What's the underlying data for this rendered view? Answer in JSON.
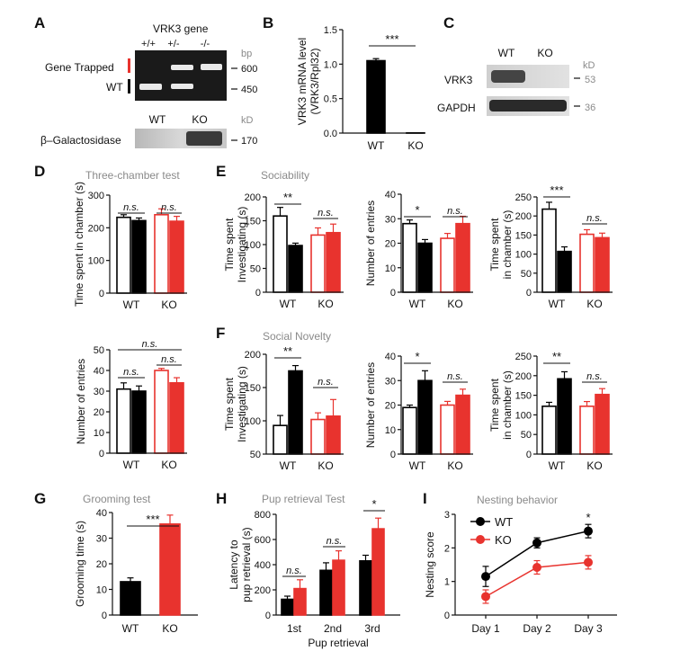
{
  "figure": {
    "panels": [
      {
        "letter": "A",
        "title": "VRK3 gene"
      },
      {
        "letter": "B"
      },
      {
        "letter": "C"
      },
      {
        "letter": "D",
        "title": "Three-chamber test"
      },
      {
        "letter": "E",
        "title": "Sociability"
      },
      {
        "letter": "F",
        "title": "Social Novelty"
      },
      {
        "letter": "G",
        "title": "Grooming test"
      },
      {
        "letter": "H",
        "title": "Pup retrieval Test"
      },
      {
        "letter": "I",
        "title": "Nesting behavior"
      }
    ],
    "gelA": {
      "lanes": [
        "+/+",
        "+/-",
        "-/-"
      ],
      "unit": "bp",
      "markers": [
        "600",
        "450"
      ],
      "labels": [
        "Gene Trapped",
        "WT"
      ]
    },
    "gelA2": {
      "lanes": [
        "WT",
        "KO"
      ],
      "unit": "kD",
      "marker": "170",
      "protein": "β–Galactosidase"
    },
    "blotC": {
      "lanes": [
        "WT",
        "KO"
      ],
      "unit": "kD",
      "rows": [
        {
          "name": "VRK3",
          "marker": "53"
        },
        {
          "name": "GAPDH",
          "marker": "36"
        }
      ]
    },
    "colors": {
      "wt": "#000000",
      "ko": "#e8332e",
      "title_gray": "#8a8a8a",
      "gel_bg": "#1a1a1a"
    }
  },
  "chart_data": [
    {
      "id": "B",
      "type": "bar",
      "categories": [
        "WT",
        "KO"
      ],
      "values": [
        1.05,
        0
      ],
      "errors": [
        0.03,
        0
      ],
      "ylabel": "VRK3 mRNA level\n(VRK3/Rpl32)",
      "ylim": [
        0,
        1.5
      ],
      "yticks": [
        "0.0",
        "0.5",
        "1.0",
        "1.5"
      ],
      "sig": [
        {
          "label": "***"
        }
      ]
    },
    {
      "id": "D1",
      "type": "bar",
      "groups": [
        "WT",
        "KO"
      ],
      "series": [
        {
          "values": [
            232,
            222
          ],
          "errors": [
            8,
            8
          ]
        },
        {
          "values": [
            240,
            220
          ],
          "errors": [
            18,
            15
          ]
        }
      ],
      "ylabel": "Time spent in chamber (s)",
      "ylim": [
        0,
        300
      ],
      "yticks": [
        "0",
        "100",
        "200",
        "300"
      ],
      "sig": [
        {
          "label": "n.s."
        },
        {
          "label": "n.s."
        }
      ]
    },
    {
      "id": "D2",
      "type": "bar",
      "groups": [
        "WT",
        "KO"
      ],
      "series": [
        {
          "values": [
            31,
            30
          ],
          "errors": [
            3,
            2.5
          ]
        },
        {
          "values": [
            40,
            34
          ],
          "errors": [
            1,
            2.5
          ]
        }
      ],
      "ylabel": "Number of entries",
      "ylim": [
        0,
        50
      ],
      "yticks": [
        "0",
        "10",
        "20",
        "30",
        "40",
        "50"
      ],
      "sig": [
        {
          "label": "n.s."
        },
        {
          "label": "n.s."
        },
        {
          "label": "n.s."
        }
      ]
    },
    {
      "id": "E1",
      "type": "bar",
      "groups": [
        "WT",
        "KO"
      ],
      "series": [
        {
          "values": [
            160,
            98
          ],
          "errors": [
            18,
            5
          ]
        },
        {
          "values": [
            120,
            125
          ],
          "errors": [
            15,
            18
          ]
        }
      ],
      "ylabel": "Time spent\nInvestigating (s)",
      "ylim": [
        0,
        200
      ],
      "yticks": [
        "0",
        "50",
        "100",
        "150",
        "200"
      ],
      "sig": [
        {
          "label": "**"
        },
        {
          "label": "n.s."
        }
      ]
    },
    {
      "id": "E2",
      "type": "bar",
      "groups": [
        "WT",
        "KO"
      ],
      "series": [
        {
          "values": [
            28,
            20
          ],
          "errors": [
            1.5,
            1.5
          ]
        },
        {
          "values": [
            22,
            28
          ],
          "errors": [
            2,
            3
          ]
        }
      ],
      "ylabel": "Number of entries",
      "ylim": [
        0,
        40
      ],
      "yticks": [
        "0",
        "10",
        "20",
        "30",
        "40"
      ],
      "sig": [
        {
          "label": "*"
        },
        {
          "label": "n.s."
        }
      ]
    },
    {
      "id": "E3",
      "type": "bar",
      "groups": [
        "WT",
        "KO"
      ],
      "series": [
        {
          "values": [
            218,
            107
          ],
          "errors": [
            18,
            12
          ]
        },
        {
          "values": [
            152,
            143
          ],
          "errors": [
            12,
            12
          ]
        }
      ],
      "ylabel": "Time spent\nin chamber (s)",
      "ylim": [
        0,
        250
      ],
      "yticks": [
        "0",
        "50",
        "100",
        "150",
        "200",
        "250"
      ],
      "sig": [
        {
          "label": "***"
        },
        {
          "label": "n.s."
        }
      ]
    },
    {
      "id": "F1",
      "type": "bar",
      "groups": [
        "WT",
        "KO"
      ],
      "series": [
        {
          "values": [
            93,
            175
          ],
          "errors": [
            15,
            8
          ]
        },
        {
          "values": [
            102,
            107
          ],
          "errors": [
            10,
            25
          ]
        }
      ],
      "ylabel": "Time spent\nInvestigating (s)",
      "ylim": [
        50,
        200
      ],
      "yticks": [
        "50",
        "100",
        "150",
        "200"
      ],
      "sig": [
        {
          "label": "**"
        },
        {
          "label": "n.s."
        }
      ]
    },
    {
      "id": "F2",
      "type": "bar",
      "groups": [
        "WT",
        "KO"
      ],
      "series": [
        {
          "values": [
            19,
            30
          ],
          "errors": [
            1,
            4
          ]
        },
        {
          "values": [
            20,
            24
          ],
          "errors": [
            1.5,
            2.5
          ]
        }
      ],
      "ylabel": "Number of entries",
      "ylim": [
        0,
        40
      ],
      "yticks": [
        "0",
        "10",
        "20",
        "30",
        "40"
      ],
      "sig": [
        {
          "label": "*"
        },
        {
          "label": "n.s."
        }
      ]
    },
    {
      "id": "F3",
      "type": "bar",
      "groups": [
        "WT",
        "KO"
      ],
      "series": [
        {
          "values": [
            122,
            192
          ],
          "errors": [
            10,
            18
          ]
        },
        {
          "values": [
            122,
            152
          ],
          "errors": [
            12,
            15
          ]
        }
      ],
      "ylabel": "Time spent\nin chamber (s)",
      "ylim": [
        0,
        250
      ],
      "yticks": [
        "0",
        "50",
        "100",
        "150",
        "200",
        "250"
      ],
      "sig": [
        {
          "label": "**"
        },
        {
          "label": "n.s."
        }
      ]
    },
    {
      "id": "G",
      "type": "bar",
      "categories": [
        "WT",
        "KO"
      ],
      "values": [
        13,
        35.5
      ],
      "errors": [
        1.5,
        3.5
      ],
      "ylabel": "Grooming time (s)",
      "ylim": [
        0,
        40
      ],
      "yticks": [
        "0",
        "10",
        "20",
        "30",
        "40"
      ],
      "sig": [
        {
          "label": "***"
        }
      ]
    },
    {
      "id": "H",
      "type": "bar",
      "categories": [
        "1st",
        "2nd",
        "3rd"
      ],
      "series": [
        {
          "values": [
            125,
            355,
            430
          ],
          "errors": [
            25,
            60,
            45
          ]
        },
        {
          "values": [
            210,
            435,
            685
          ],
          "errors": [
            70,
            75,
            85
          ]
        }
      ],
      "xlabel": "Pup retrieval",
      "ylabel": "Latency to\npup retrieval (s)",
      "ylim": [
        0,
        800
      ],
      "yticks": [
        "0",
        "200",
        "400",
        "600",
        "800"
      ],
      "sig": [
        {
          "label": "n.s."
        },
        {
          "label": "n.s."
        },
        {
          "label": "*"
        }
      ]
    },
    {
      "id": "I",
      "type": "line",
      "categories": [
        "Day 1",
        "Day 2",
        "Day 3"
      ],
      "series": [
        {
          "name": "WT",
          "values": [
            1.15,
            2.15,
            2.5
          ],
          "errors": [
            0.3,
            0.15,
            0.2
          ]
        },
        {
          "name": "KO",
          "values": [
            0.55,
            1.42,
            1.57
          ],
          "errors": [
            0.2,
            0.2,
            0.2
          ]
        }
      ],
      "ylabel": "Nesting score",
      "ylim": [
        0,
        3
      ],
      "yticks": [
        "0",
        "1",
        "2",
        "3"
      ],
      "sig": [
        {
          "label": "*"
        }
      ]
    }
  ]
}
